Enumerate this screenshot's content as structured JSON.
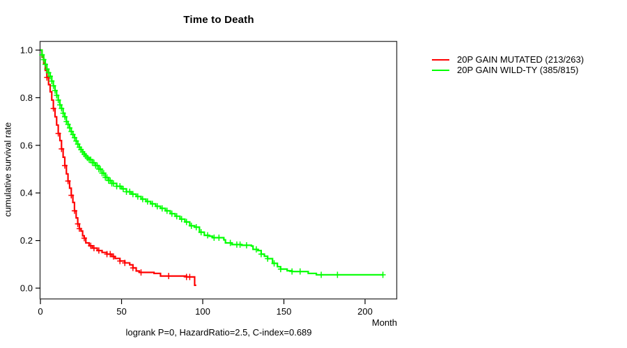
{
  "title": "Time to Death",
  "annotation": "logrank P=0, HazardRatio=2.5, C-index=0.689",
  "axes": {
    "x_label": "Month",
    "y_label": "cumulative survival rate",
    "x_ticks": [
      0,
      50,
      100,
      150,
      200
    ],
    "y_ticks": [
      "0.0",
      "0.2",
      "0.4",
      "0.6",
      "0.8",
      "1.0"
    ]
  },
  "legend": [
    {
      "label": "20P GAIN MUTATED (213/263)",
      "color": "#ff0000"
    },
    {
      "label": "20P GAIN WILD-TY (385/815)",
      "color": "#00ff00"
    }
  ],
  "colors": {
    "mutated": "#ff0000",
    "wildtype": "#00ff00",
    "axis": "#000000",
    "box": "#3c3c3c"
  },
  "chart_data": {
    "type": "line",
    "subtype": "kaplan-meier-step",
    "title": "Time to Death",
    "xlabel": "Month",
    "ylabel": "cumulative survival rate",
    "xlim": [
      0,
      220
    ],
    "ylim": [
      0,
      1.0
    ],
    "grid": false,
    "legend_position": "right-outside",
    "annotation": "logrank P=0, HazardRatio=2.5, C-index=0.689",
    "series": [
      {
        "name": "20P GAIN MUTATED (213/263)",
        "color": "#ff0000",
        "points": [
          [
            0,
            1.0
          ],
          [
            1,
            0.97
          ],
          [
            2,
            0.945
          ],
          [
            3,
            0.915
          ],
          [
            4,
            0.885
          ],
          [
            5,
            0.855
          ],
          [
            6,
            0.825
          ],
          [
            7,
            0.79
          ],
          [
            8,
            0.755
          ],
          [
            9,
            0.72
          ],
          [
            10,
            0.685
          ],
          [
            11,
            0.65
          ],
          [
            12,
            0.62
          ],
          [
            13,
            0.585
          ],
          [
            14,
            0.55
          ],
          [
            15,
            0.515
          ],
          [
            16,
            0.48
          ],
          [
            17,
            0.45
          ],
          [
            18,
            0.42
          ],
          [
            19,
            0.39
          ],
          [
            20,
            0.36
          ],
          [
            21,
            0.325
          ],
          [
            22,
            0.295
          ],
          [
            23,
            0.27
          ],
          [
            24,
            0.25
          ],
          [
            25,
            0.24
          ],
          [
            26,
            0.22
          ],
          [
            27,
            0.21
          ],
          [
            28,
            0.19
          ],
          [
            30,
            0.178
          ],
          [
            32,
            0.168
          ],
          [
            35,
            0.158
          ],
          [
            38,
            0.15
          ],
          [
            41,
            0.143
          ],
          [
            44,
            0.133
          ],
          [
            46,
            0.125
          ],
          [
            49,
            0.114
          ],
          [
            52,
            0.106
          ],
          [
            55,
            0.098
          ],
          [
            57,
            0.085
          ],
          [
            59,
            0.072
          ],
          [
            61,
            0.066
          ],
          [
            70,
            0.062
          ],
          [
            74,
            0.051
          ],
          [
            90,
            0.047
          ],
          [
            95,
            0.012
          ],
          [
            96,
            0.012
          ]
        ],
        "censor_months": [
          4,
          8,
          11,
          13,
          15,
          17,
          19,
          21,
          23,
          24,
          27,
          31,
          33,
          36,
          41,
          43,
          45,
          49,
          52,
          57,
          62,
          79,
          90,
          92
        ]
      },
      {
        "name": "20P GAIN WILD-TY (385/815)",
        "color": "#00ff00",
        "points": [
          [
            0,
            1.0
          ],
          [
            1,
            0.98
          ],
          [
            2,
            0.96
          ],
          [
            3,
            0.94
          ],
          [
            4,
            0.92
          ],
          [
            5,
            0.905
          ],
          [
            6,
            0.89
          ],
          [
            7,
            0.87
          ],
          [
            8,
            0.85
          ],
          [
            9,
            0.83
          ],
          [
            10,
            0.81
          ],
          [
            11,
            0.79
          ],
          [
            12,
            0.77
          ],
          [
            13,
            0.755
          ],
          [
            14,
            0.735
          ],
          [
            15,
            0.72
          ],
          [
            16,
            0.7
          ],
          [
            17,
            0.688
          ],
          [
            18,
            0.673
          ],
          [
            19,
            0.658
          ],
          [
            20,
            0.645
          ],
          [
            21,
            0.632
          ],
          [
            22,
            0.618
          ],
          [
            23,
            0.605
          ],
          [
            24,
            0.592
          ],
          [
            25,
            0.582
          ],
          [
            26,
            0.572
          ],
          [
            27,
            0.563
          ],
          [
            28,
            0.555
          ],
          [
            29,
            0.547
          ],
          [
            30,
            0.54
          ],
          [
            32,
            0.527
          ],
          [
            34,
            0.515
          ],
          [
            36,
            0.5
          ],
          [
            38,
            0.483
          ],
          [
            40,
            0.465
          ],
          [
            42,
            0.452
          ],
          [
            44,
            0.44
          ],
          [
            47,
            0.428
          ],
          [
            50,
            0.417
          ],
          [
            53,
            0.405
          ],
          [
            56,
            0.395
          ],
          [
            59,
            0.385
          ],
          [
            62,
            0.374
          ],
          [
            65,
            0.364
          ],
          [
            68,
            0.354
          ],
          [
            71,
            0.344
          ],
          [
            74,
            0.335
          ],
          [
            77,
            0.325
          ],
          [
            80,
            0.313
          ],
          [
            83,
            0.302
          ],
          [
            86,
            0.29
          ],
          [
            89,
            0.278
          ],
          [
            92,
            0.262
          ],
          [
            95,
            0.256
          ],
          [
            98,
            0.235
          ],
          [
            101,
            0.222
          ],
          [
            104,
            0.218
          ],
          [
            106,
            0.212
          ],
          [
            113,
            0.203
          ],
          [
            114,
            0.19
          ],
          [
            118,
            0.183
          ],
          [
            124,
            0.18
          ],
          [
            130,
            0.177
          ],
          [
            131,
            0.163
          ],
          [
            134,
            0.158
          ],
          [
            136,
            0.143
          ],
          [
            138,
            0.134
          ],
          [
            140,
            0.124
          ],
          [
            143,
            0.104
          ],
          [
            146,
            0.09
          ],
          [
            148,
            0.08
          ],
          [
            152,
            0.073
          ],
          [
            155,
            0.07
          ],
          [
            165,
            0.062
          ],
          [
            170,
            0.056
          ],
          [
            211,
            0.056
          ]
        ],
        "censor_months": [
          1,
          2,
          3,
          4,
          5,
          6,
          7,
          8,
          9,
          10,
          11,
          12,
          13,
          14,
          15,
          16,
          17,
          18,
          19,
          20,
          21,
          22,
          23,
          24,
          25,
          26,
          27,
          28,
          29,
          30,
          31,
          32,
          33,
          34,
          35,
          36,
          37,
          38,
          39,
          40,
          41,
          42,
          43,
          44,
          45,
          47,
          49,
          51,
          53,
          55,
          57,
          60,
          63,
          66,
          69,
          72,
          75,
          78,
          81,
          84,
          87,
          90,
          93,
          96,
          99,
          103,
          107,
          110,
          117,
          121,
          123,
          127,
          133,
          136,
          140,
          144,
          148,
          155,
          160,
          173,
          183,
          211
        ]
      }
    ]
  }
}
